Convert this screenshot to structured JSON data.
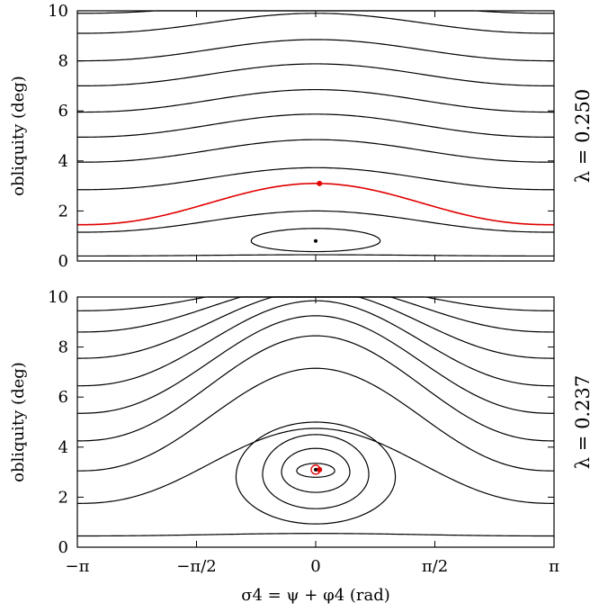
{
  "chart_data": [
    {
      "type": "line",
      "panel_label": "λ = 0.250",
      "ylabel": "obliquity (deg)",
      "xlim": [
        -3.14159,
        3.14159
      ],
      "ylim": [
        0,
        10
      ],
      "yticks": [
        "0",
        "2",
        "4",
        "6",
        "8",
        "10"
      ],
      "contours": [
        {
          "x0": 0.2,
          "amplitude": 0.05
        },
        {
          "x0": 1.15,
          "amplitude": 0.85
        },
        {
          "x0": 2.85,
          "amplitude": 0.88
        },
        {
          "x0": 3.95,
          "amplitude": 0.9
        },
        {
          "x0": 4.95,
          "amplitude": 0.92
        },
        {
          "x0": 5.95,
          "amplitude": 0.9
        },
        {
          "x0": 7.0,
          "amplitude": 0.88
        },
        {
          "x0": 8.0,
          "amplitude": 0.85
        },
        {
          "x0": 9.1,
          "amplitude": 0.8
        },
        {
          "x0": 9.9,
          "amplitude": 0.55
        }
      ],
      "separatrix": {
        "x0": 1.45,
        "amplitude": 1.65,
        "color": "#e00000"
      },
      "closed_orbits": [
        {
          "center_x": 0.0,
          "center_y": 0.8,
          "half_width_x": 0.85,
          "half_height": 0.5
        }
      ],
      "points": [
        {
          "x": 0.05,
          "y": 3.1,
          "color": "#e00000",
          "kind": "dot"
        },
        {
          "x": 0.0,
          "y": 0.8,
          "color": "#000000",
          "kind": "dot"
        }
      ]
    },
    {
      "type": "line",
      "panel_label": "λ = 0.237",
      "ylabel": "obliquity (deg)",
      "xlabel": "σ4 = ψ + φ4 (rad)",
      "xlim": [
        -3.14159,
        3.14159
      ],
      "ylim": [
        0,
        10
      ],
      "xticks": [
        "−π",
        "−π/2",
        "0",
        "π/2",
        "π"
      ],
      "yticks": [
        "0",
        "2",
        "4",
        "6",
        "8",
        "10"
      ],
      "contours": [
        {
          "x0": 0.45,
          "amplitude": 0.1
        },
        {
          "x0": 1.75,
          "amplitude": 3.0
        },
        {
          "x0": 3.05,
          "amplitude": 4.1
        },
        {
          "x0": 4.25,
          "amplitude": 4.2
        },
        {
          "x0": 5.35,
          "amplitude": 3.9
        },
        {
          "x0": 6.45,
          "amplitude": 3.4
        },
        {
          "x0": 7.55,
          "amplitude": 2.7
        },
        {
          "x0": 8.6,
          "amplitude": 1.9
        },
        {
          "x0": 9.45,
          "amplitude": 1.1
        }
      ],
      "closed_orbits": [
        {
          "center_x": 0.0,
          "center_y": 3.05,
          "half_width_x": 0.25,
          "half_height": 0.3
        },
        {
          "center_x": 0.0,
          "center_y": 3.0,
          "half_width_x": 0.45,
          "half_height": 0.95
        },
        {
          "center_x": 0.0,
          "center_y": 2.9,
          "half_width_x": 0.7,
          "half_height": 1.6
        },
        {
          "center_x": 0.0,
          "center_y": 2.8,
          "half_width_x": 1.05,
          "half_height": 2.2
        }
      ],
      "points": [
        {
          "x": 0.0,
          "y": 3.1,
          "color": "#e00000",
          "kind": "ring"
        },
        {
          "x": 0.05,
          "y": 3.1,
          "color": "#e00000",
          "kind": "dot"
        },
        {
          "x": 0.0,
          "y": 3.1,
          "color": "#000000",
          "kind": "dot"
        }
      ]
    }
  ]
}
